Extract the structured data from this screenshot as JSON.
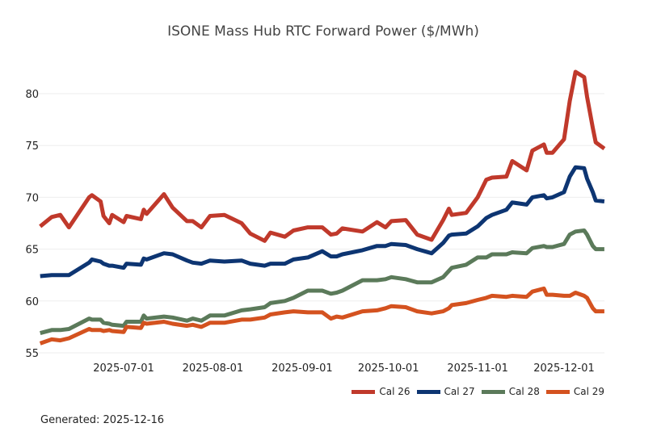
{
  "chart_data": {
    "type": "line",
    "title": "ISONE Mass Hub RTC Forward Power ($/MWh)",
    "xlabel": "",
    "ylabel": "",
    "ylim": [
      54.3,
      83.4
    ],
    "yticks": [
      55,
      60,
      65,
      70,
      75,
      80
    ],
    "xticks": [
      "2025-07-01",
      "2025-08-01",
      "2025-09-01",
      "2025-10-01",
      "2025-11-01",
      "2025-12-01"
    ],
    "grid": "horizontal",
    "legend_position": "bottom-right",
    "x": [
      "2025-06-02",
      "2025-06-06",
      "2025-06-09",
      "2025-06-12",
      "2025-06-19",
      "2025-06-20",
      "2025-06-23",
      "2025-06-24",
      "2025-06-26",
      "2025-06-27",
      "2025-07-01",
      "2025-07-02",
      "2025-07-07",
      "2025-07-08",
      "2025-07-09",
      "2025-07-15",
      "2025-07-18",
      "2025-07-23",
      "2025-07-25",
      "2025-07-28",
      "2025-07-31",
      "2025-08-05",
      "2025-08-11",
      "2025-08-14",
      "2025-08-19",
      "2025-08-21",
      "2025-08-26",
      "2025-08-29",
      "2025-09-03",
      "2025-09-08",
      "2025-09-11",
      "2025-09-13",
      "2025-09-15",
      "2025-09-22",
      "2025-09-27",
      "2025-09-30",
      "2025-10-02",
      "2025-10-07",
      "2025-10-11",
      "2025-10-16",
      "2025-10-20",
      "2025-10-22",
      "2025-10-23",
      "2025-10-28",
      "2025-11-01",
      "2025-11-04",
      "2025-11-06",
      "2025-11-11",
      "2025-11-13",
      "2025-11-18",
      "2025-11-20",
      "2025-11-24",
      "2025-11-25",
      "2025-11-27",
      "2025-12-01",
      "2025-12-03",
      "2025-12-05",
      "2025-12-08",
      "2025-12-09",
      "2025-12-11",
      "2025-12-12",
      "2025-12-15"
    ],
    "series": [
      {
        "name": "Cal 26",
        "color": "#c0392b",
        "values": [
          67.2,
          68.1,
          68.3,
          67.1,
          70.0,
          70.2,
          69.6,
          68.2,
          67.5,
          68.3,
          67.6,
          68.2,
          67.9,
          68.8,
          68.4,
          70.3,
          69.0,
          67.7,
          67.7,
          67.1,
          68.2,
          68.3,
          67.5,
          66.5,
          65.8,
          66.6,
          66.2,
          66.8,
          67.1,
          67.1,
          66.4,
          66.5,
          67.0,
          66.7,
          67.6,
          67.1,
          67.7,
          67.8,
          66.4,
          65.9,
          67.8,
          68.9,
          68.3,
          68.5,
          70.0,
          71.7,
          71.9,
          72.0,
          73.5,
          72.6,
          74.5,
          75.1,
          74.3,
          74.3,
          75.6,
          79.3,
          82.1,
          81.6,
          79.7,
          76.7,
          75.3,
          74.7
        ]
      },
      {
        "name": "Cal 27",
        "color": "#0d3572",
        "values": [
          62.4,
          62.5,
          62.5,
          62.5,
          63.7,
          64.0,
          63.8,
          63.6,
          63.4,
          63.4,
          63.2,
          63.6,
          63.5,
          64.1,
          64.0,
          64.6,
          64.5,
          63.9,
          63.7,
          63.6,
          63.9,
          63.8,
          63.9,
          63.6,
          63.4,
          63.6,
          63.6,
          64.0,
          64.2,
          64.8,
          64.3,
          64.3,
          64.5,
          64.9,
          65.3,
          65.3,
          65.5,
          65.4,
          65.0,
          64.6,
          65.6,
          66.3,
          66.4,
          66.5,
          67.2,
          68.0,
          68.3,
          68.8,
          69.5,
          69.3,
          70.0,
          70.2,
          69.9,
          70.0,
          70.5,
          72.0,
          72.9,
          72.8,
          71.8,
          70.5,
          69.7,
          69.6
        ]
      },
      {
        "name": "Cal 28",
        "color": "#5b7a5a",
        "values": [
          56.9,
          57.2,
          57.2,
          57.3,
          58.3,
          58.2,
          58.2,
          57.9,
          57.8,
          57.7,
          57.6,
          58.0,
          58.0,
          58.6,
          58.3,
          58.5,
          58.4,
          58.1,
          58.3,
          58.1,
          58.6,
          58.6,
          59.1,
          59.2,
          59.4,
          59.8,
          60.0,
          60.3,
          61.0,
          61.0,
          60.7,
          60.8,
          61.0,
          62.0,
          62.0,
          62.1,
          62.3,
          62.1,
          61.8,
          61.8,
          62.3,
          62.9,
          63.2,
          63.5,
          64.2,
          64.2,
          64.5,
          64.5,
          64.7,
          64.6,
          65.1,
          65.3,
          65.2,
          65.2,
          65.5,
          66.4,
          66.7,
          66.8,
          66.4,
          65.3,
          65.0,
          65.0
        ]
      },
      {
        "name": "Cal 29",
        "color": "#d4521f",
        "values": [
          55.9,
          56.3,
          56.2,
          56.4,
          57.3,
          57.2,
          57.2,
          57.1,
          57.2,
          57.1,
          57.0,
          57.5,
          57.4,
          57.9,
          57.8,
          58.0,
          57.8,
          57.6,
          57.7,
          57.5,
          57.9,
          57.9,
          58.2,
          58.2,
          58.4,
          58.7,
          58.9,
          59.0,
          58.9,
          58.9,
          58.3,
          58.5,
          58.4,
          59.0,
          59.1,
          59.3,
          59.5,
          59.4,
          59.0,
          58.8,
          59.0,
          59.3,
          59.6,
          59.8,
          60.1,
          60.3,
          60.5,
          60.4,
          60.5,
          60.4,
          60.9,
          61.2,
          60.6,
          60.6,
          60.5,
          60.5,
          60.8,
          60.5,
          60.3,
          59.3,
          59.0,
          59.0
        ]
      }
    ]
  },
  "footer": {
    "generated": "Generated: 2025-12-16"
  }
}
